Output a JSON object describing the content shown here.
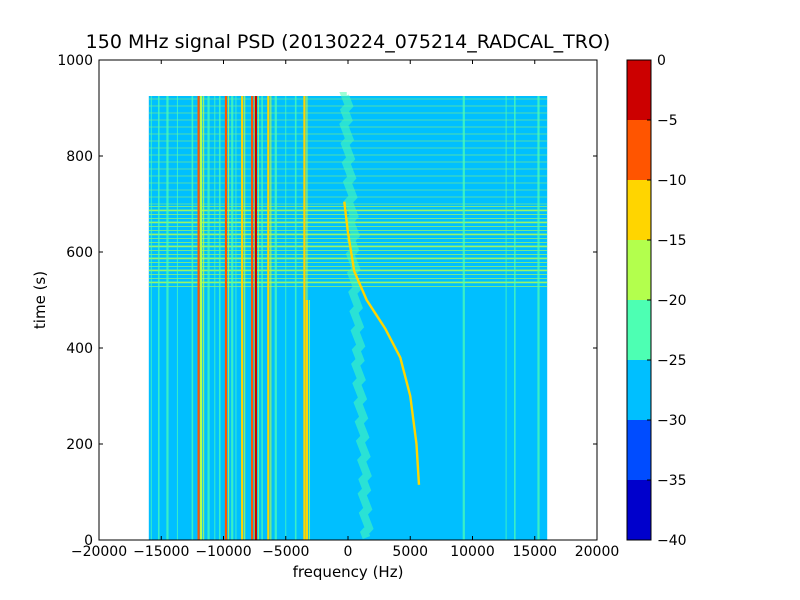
{
  "chart_data": {
    "type": "heatmap",
    "title": "150 MHz signal PSD (20130224_075214_RADCAL_TRO)",
    "xlabel": "frequency (Hz)",
    "ylabel": "time (s)",
    "xlim": [
      -20000,
      20000
    ],
    "ylim": [
      0,
      1000
    ],
    "x_ticks": [
      -20000,
      -15000,
      -10000,
      -5000,
      0,
      5000,
      10000,
      15000,
      20000
    ],
    "y_ticks": [
      0,
      200,
      400,
      600,
      800,
      1000
    ],
    "x_tick_labels": [
      "−20000",
      "−15000",
      "−10000",
      "−5000",
      "0",
      "5000",
      "10000",
      "15000",
      "20000"
    ],
    "y_tick_labels": [
      "0",
      "200",
      "400",
      "600",
      "800",
      "1000"
    ],
    "data_extent": {
      "x": [
        -16000,
        16000
      ],
      "y": [
        0,
        925
      ]
    },
    "background_level_color": "#00bfff",
    "colorbar": {
      "levels": [
        -40,
        -35,
        -30,
        -25,
        -20,
        -15,
        -10,
        -5,
        0
      ],
      "tick_labels": [
        "−40",
        "−35",
        "−30",
        "−25",
        "−20",
        "−15",
        "−10",
        "−5",
        "0"
      ],
      "colors": [
        "#0000cc",
        "#004cff",
        "#00bfff",
        "#4dffb3",
        "#b3ff4d",
        "#ffd500",
        "#ff5500",
        "#cc0000"
      ]
    },
    "vertical_carriers": [
      {
        "freq": -12000,
        "t_start": 0,
        "t_end": 925,
        "level": -10
      },
      {
        "freq": -11800,
        "t_start": 0,
        "t_end": 925,
        "level": -20
      },
      {
        "freq": -9800,
        "t_start": 0,
        "t_end": 925,
        "level": -10
      },
      {
        "freq": -8500,
        "t_start": 0,
        "t_end": 925,
        "level": -15
      },
      {
        "freq": -7700,
        "t_start": 0,
        "t_end": 925,
        "level": -10
      },
      {
        "freq": -7400,
        "t_start": 0,
        "t_end": 925,
        "level": -5
      },
      {
        "freq": -6400,
        "t_start": 0,
        "t_end": 925,
        "level": -15
      },
      {
        "freq": -3500,
        "t_start": 0,
        "t_end": 925,
        "level": -15
      },
      {
        "freq": -3300,
        "t_start": 0,
        "t_end": 500,
        "level": -15
      }
    ],
    "drifting_signal": {
      "level": -15,
      "points": [
        {
          "freq": -300,
          "time": 705
        },
        {
          "freq": 0,
          "time": 640
        },
        {
          "freq": 500,
          "time": 560
        },
        {
          "freq": 1500,
          "time": 500
        },
        {
          "freq": 3000,
          "time": 440
        },
        {
          "freq": 4200,
          "time": 380
        },
        {
          "freq": 5000,
          "time": 300
        },
        {
          "freq": 5500,
          "time": 200
        },
        {
          "freq": 5700,
          "time": 115
        }
      ]
    },
    "interference_band": {
      "time": [
        525,
        695
      ],
      "level": -20
    }
  }
}
